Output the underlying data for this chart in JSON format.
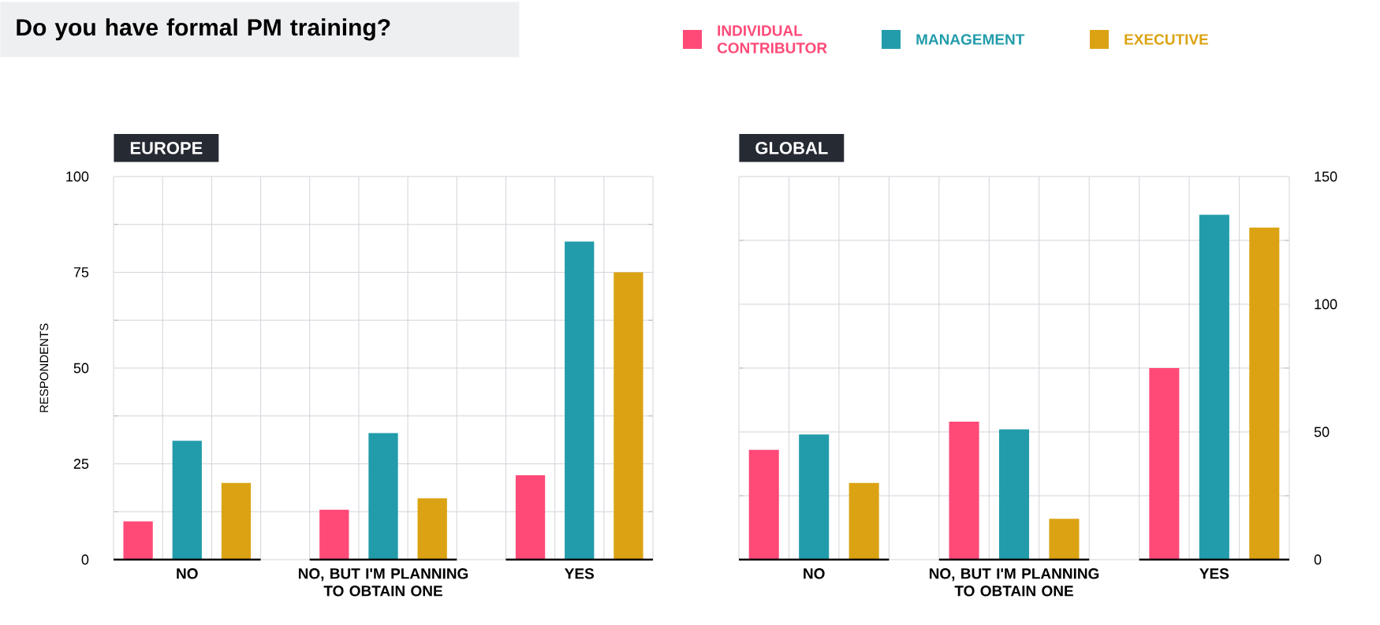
{
  "chart_data": [
    {
      "type": "bar",
      "title": "Do you have formal PM training?",
      "subtitle": "EUROPE",
      "ylabel": "RESPONDENTS",
      "categories": [
        "NO",
        "NO, BUT I'M PLANNING TO OBTAIN ONE",
        "YES"
      ],
      "series": [
        {
          "name": "INDIVIDUAL CONTRIBUTOR",
          "color": "#ff4a78",
          "values": [
            10,
            13,
            22
          ]
        },
        {
          "name": "MANAGEMENT",
          "color": "#229cab",
          "values": [
            31,
            33,
            83
          ]
        },
        {
          "name": "EXECUTIVE",
          "color": "#dba313",
          "values": [
            20,
            16,
            75
          ]
        }
      ],
      "ylim": [
        0,
        100
      ],
      "yticks": [
        0,
        25,
        50,
        75,
        100
      ],
      "grid": true,
      "legend": "top right"
    },
    {
      "type": "bar",
      "subtitle": "GLOBAL",
      "categories": [
        "NO",
        "NO, BUT I'M PLANNING TO OBTAIN ONE",
        "YES"
      ],
      "series": [
        {
          "color": "#ff4a78",
          "values": [
            43,
            54,
            75
          ]
        },
        {
          "color": "#229cab",
          "values": [
            49,
            51,
            135
          ]
        },
        {
          "color": "#dba313",
          "values": [
            30,
            16,
            130
          ]
        }
      ],
      "ylim": [
        0,
        150
      ],
      "yticks": [
        0,
        50,
        100,
        150
      ],
      "grid": true
    }
  ]
}
